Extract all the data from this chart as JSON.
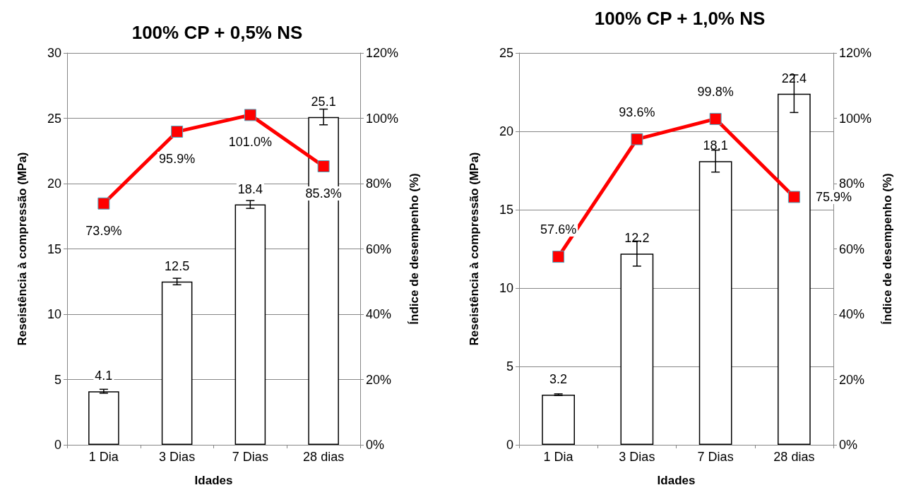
{
  "chart_data": [
    {
      "type": "bar",
      "title": "100% CP + 0,5% NS",
      "xlabel": "Idades",
      "ylabel": "Reseistência à compressão (MPa)",
      "y2label": "Índice de desempenho (%)",
      "categories": [
        "1 Dia",
        "3 Dias",
        "7 Dias",
        "28 dias"
      ],
      "series": [
        {
          "color": "#ffffff",
          "values": [
            4.1,
            12.5,
            18.4,
            25.1
          ],
          "errors": [
            0.15,
            0.25,
            0.3,
            0.6
          ],
          "value_labels": [
            "4.1",
            "12.5",
            "18.4",
            "25.1"
          ]
        },
        {
          "type": "line",
          "axis": "y2",
          "color": "#ff0000",
          "values": [
            73.9,
            95.9,
            101.0,
            85.3
          ],
          "value_labels": [
            "73.9%",
            "95.9%",
            "101.0%",
            "85.3%"
          ]
        }
      ],
      "ylim": [
        0,
        30
      ],
      "yticks": [
        0,
        5,
        10,
        15,
        20,
        25,
        30
      ],
      "y2lim": [
        0,
        120
      ],
      "y2ticks": [
        {
          "value": 0,
          "label": "0%"
        },
        {
          "value": 20,
          "label": "20%"
        },
        {
          "value": 40,
          "label": "40%"
        },
        {
          "value": 60,
          "label": "60%"
        },
        {
          "value": 80,
          "label": "80%"
        },
        {
          "value": 100,
          "label": "100%"
        },
        {
          "value": 120,
          "label": "120%"
        }
      ],
      "grid": "y",
      "marker": "square",
      "line_style": "solid"
    },
    {
      "type": "bar",
      "title": "100% CP + 1,0% NS",
      "xlabel": "Idades",
      "ylabel": "Reseistência à compressão (MPa)",
      "y2label": "Índice de desempenho (%)",
      "categories": [
        "1 Dia",
        "3 Dias",
        "7 Dias",
        "28 dias"
      ],
      "series": [
        {
          "color": "#ffffff",
          "values": [
            3.2,
            12.2,
            18.1,
            22.4
          ],
          "errors": [
            0.05,
            0.8,
            0.7,
            1.2
          ],
          "value_labels": [
            "3.2",
            "12.2",
            "18.1",
            "22.4"
          ]
        },
        {
          "type": "line",
          "axis": "y2",
          "color": "#ff0000",
          "values": [
            57.6,
            93.6,
            99.8,
            75.9
          ],
          "value_labels": [
            "57.6%",
            "93.6%",
            "99.8%",
            "75.9%"
          ]
        }
      ],
      "ylim": [
        0,
        25
      ],
      "yticks": [
        0,
        5,
        10,
        15,
        20,
        25
      ],
      "y2lim": [
        0,
        120
      ],
      "y2ticks": [
        {
          "value": 0,
          "label": "0%"
        },
        {
          "value": 20,
          "label": "20%"
        },
        {
          "value": 40,
          "label": "40%"
        },
        {
          "value": 60,
          "label": "60%"
        },
        {
          "value": 80,
          "label": "80%"
        },
        {
          "value": 100,
          "label": "100%"
        },
        {
          "value": 120,
          "label": "120%"
        }
      ],
      "grid": "y",
      "marker": "square",
      "line_style": "solid"
    }
  ]
}
